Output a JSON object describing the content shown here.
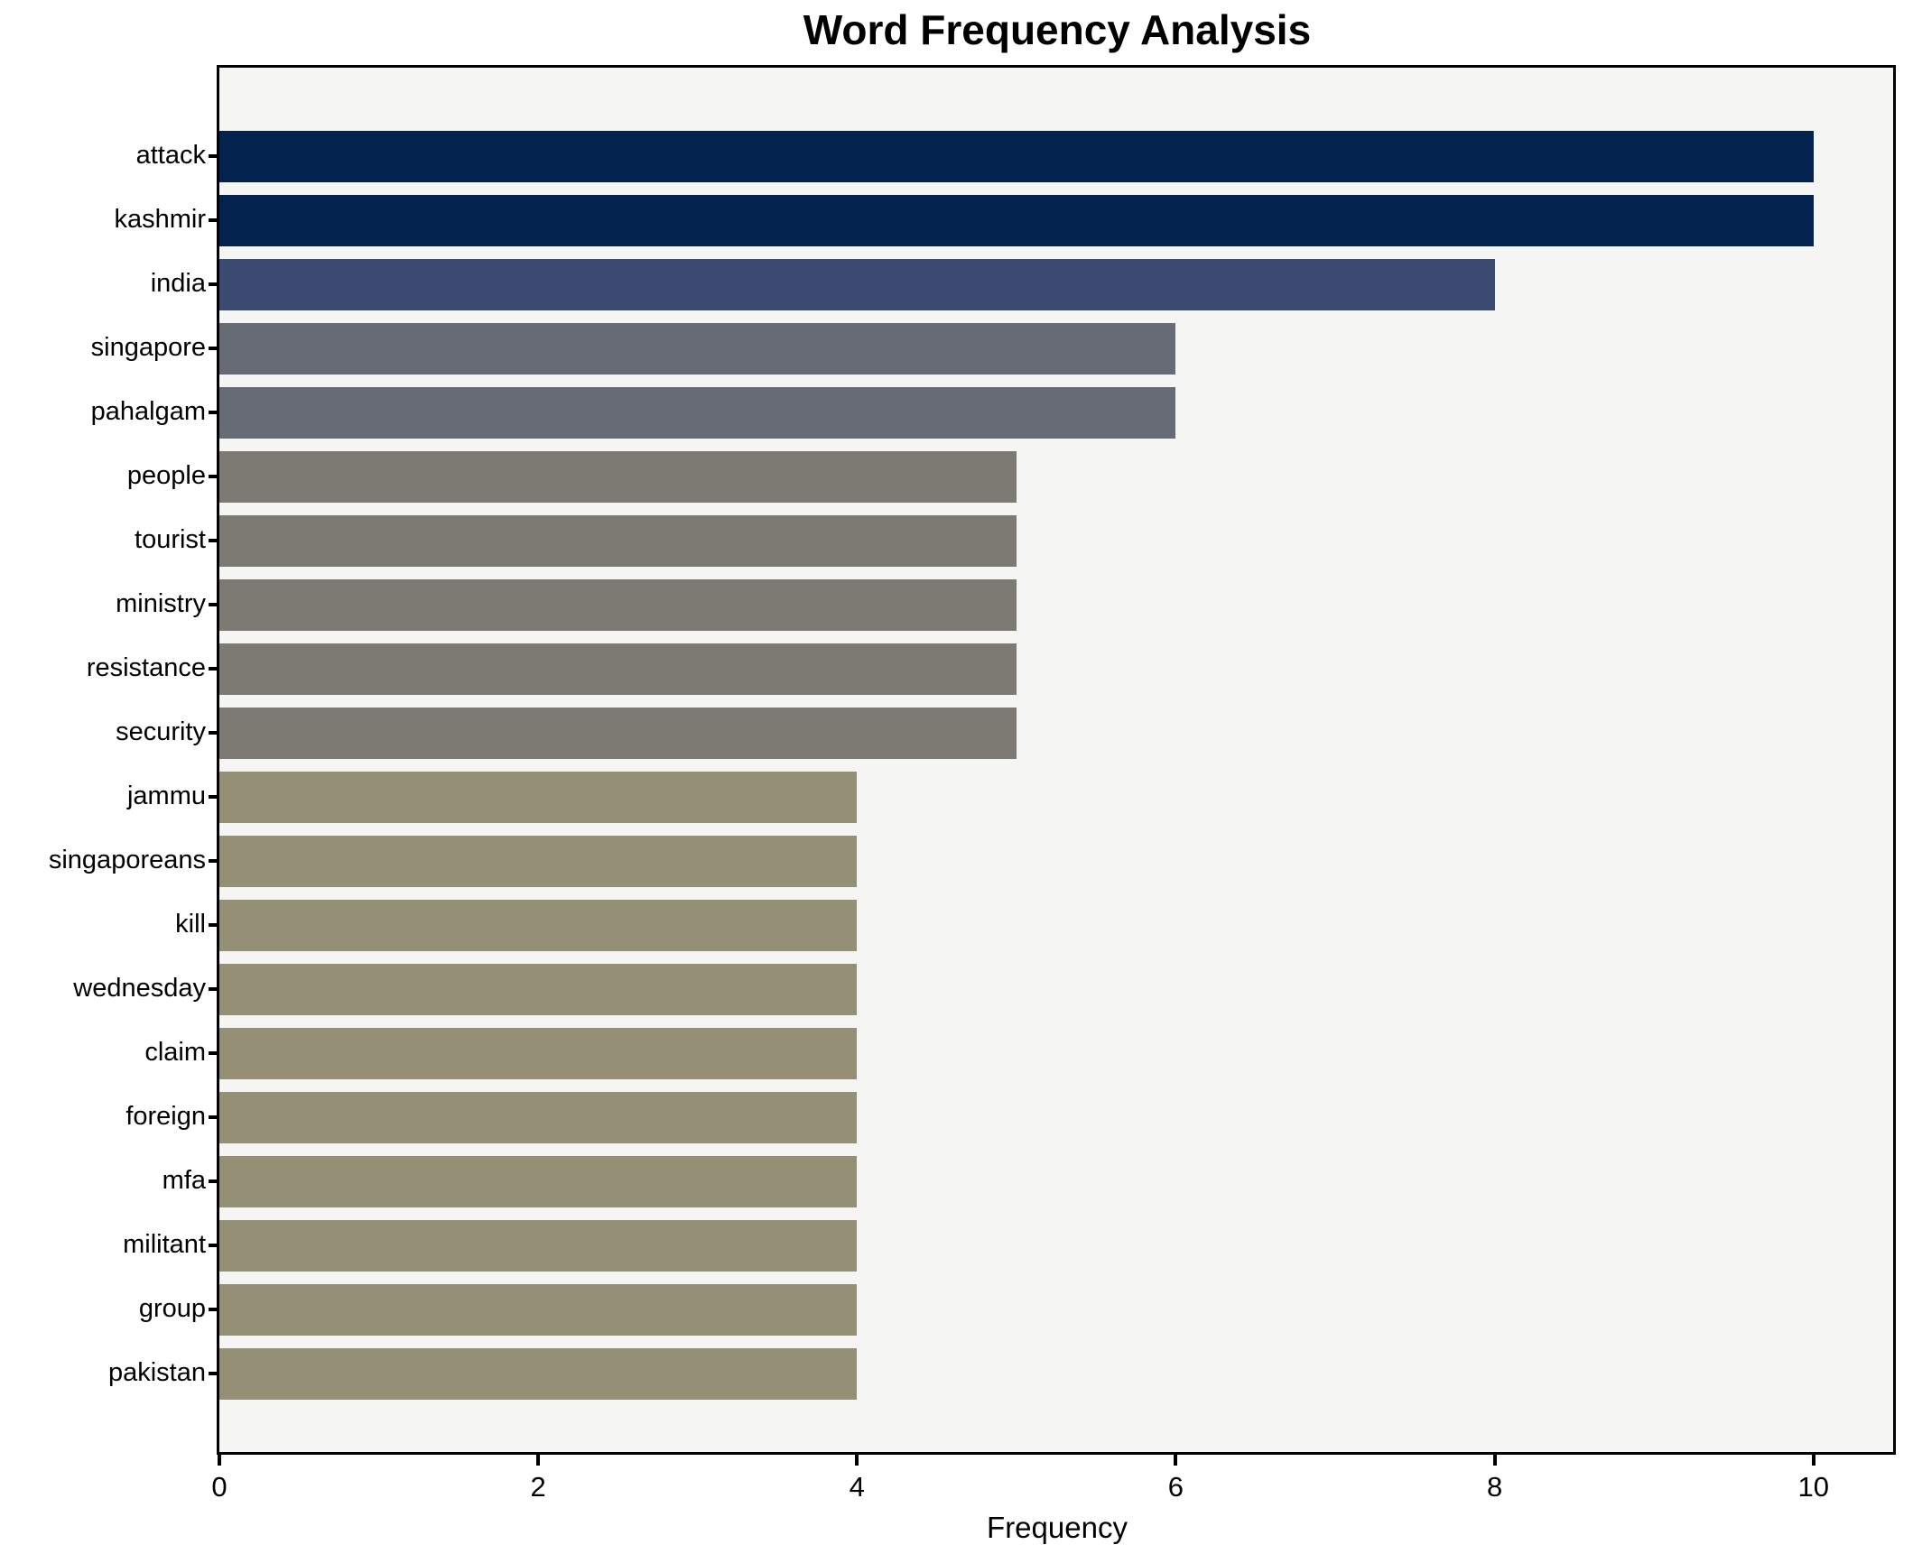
{
  "chart_data": {
    "type": "bar",
    "orientation": "horizontal",
    "title": "Word Frequency Analysis",
    "xlabel": "Frequency",
    "ylabel": "",
    "categories": [
      "attack",
      "kashmir",
      "india",
      "singapore",
      "pahalgam",
      "people",
      "tourist",
      "ministry",
      "resistance",
      "security",
      "jammu",
      "singaporeans",
      "kill",
      "wednesday",
      "claim",
      "foreign",
      "mfa",
      "militant",
      "group",
      "pakistan"
    ],
    "values": [
      10,
      10,
      8,
      6,
      6,
      5,
      5,
      5,
      5,
      5,
      4,
      4,
      4,
      4,
      4,
      4,
      4,
      4,
      4,
      4
    ],
    "bar_colors": [
      "#03224d",
      "#03224d",
      "#3b4a71",
      "#666b75",
      "#666b75",
      "#7c7a73",
      "#7c7a73",
      "#7c7a73",
      "#7c7a73",
      "#7c7a73",
      "#958f76",
      "#958f76",
      "#958f76",
      "#958f76",
      "#958f76",
      "#958f76",
      "#958f76",
      "#958f76",
      "#958f76",
      "#958f76"
    ],
    "xlim": [
      0,
      10.5
    ],
    "xticks": [
      0,
      2,
      4,
      6,
      8,
      10
    ],
    "grid": false,
    "legend": null,
    "plot_background": "#f5f5f3",
    "figure_background": "#ffffff",
    "axis_color": "#000000"
  }
}
